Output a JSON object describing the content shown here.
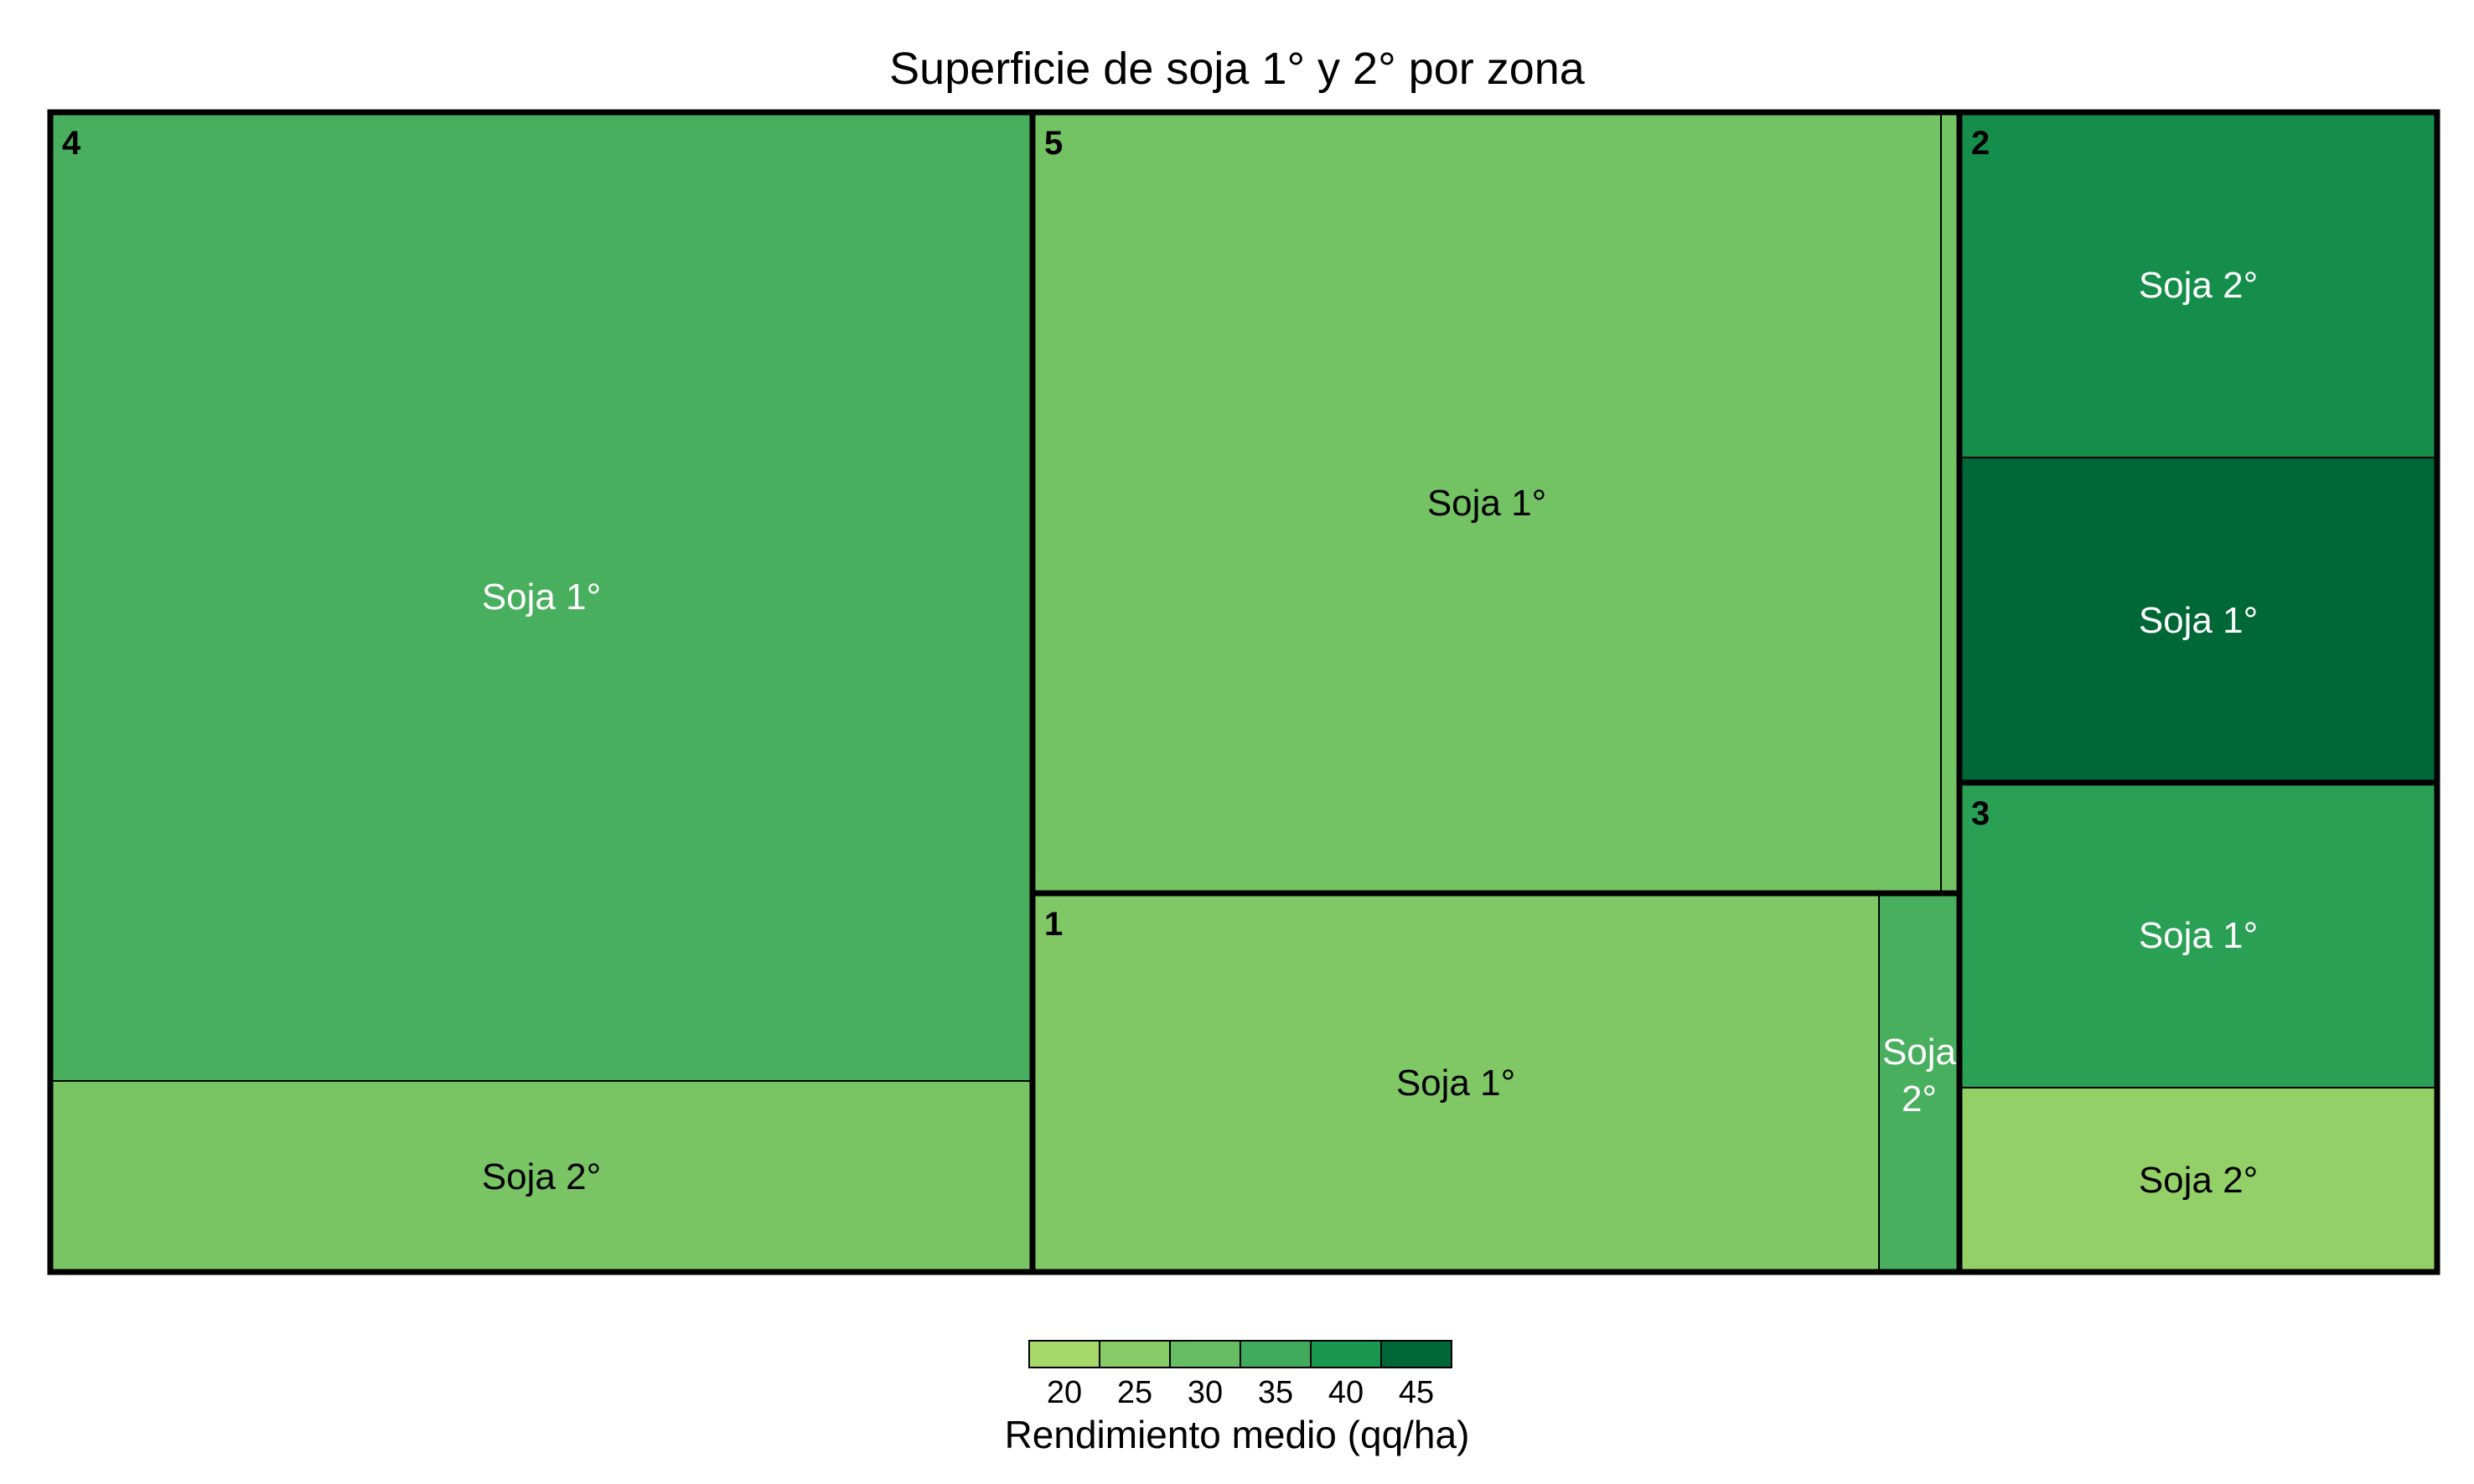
{
  "chart_data": {
    "type": "treemap",
    "title": "Superficie de soja 1° y 2° por zona",
    "zones": [
      {
        "zone": "4",
        "cells": [
          {
            "label": "Soja 1°",
            "yield": 34
          },
          {
            "label": "Soja 2°",
            "yield": 27
          }
        ]
      },
      {
        "zone": "5",
        "cells": [
          {
            "label": "Soja 1°",
            "yield": 28
          },
          {
            "label": "",
            "yield": 28
          }
        ]
      },
      {
        "zone": "1",
        "cells": [
          {
            "label": "Soja 1°",
            "yield": 26
          },
          {
            "label": "Soja 2°",
            "yield": 34
          }
        ]
      },
      {
        "zone": "2",
        "cells": [
          {
            "label": "Soja 2°",
            "yield": 41
          },
          {
            "label": "Soja 1°",
            "yield": 48
          }
        ]
      },
      {
        "zone": "3",
        "cells": [
          {
            "label": "Soja 1°",
            "yield": 38
          },
          {
            "label": "Soja 2°",
            "yield": 23
          }
        ]
      }
    ],
    "legend": {
      "title": "Rendimiento medio (qq/ha)",
      "ticks": [
        "20",
        "25",
        "30",
        "35",
        "40",
        "45"
      ],
      "colors": [
        "#a6d96a",
        "#86cb66",
        "#66bd63",
        "#41ab5d",
        "#1a9850",
        "#006837"
      ]
    }
  }
}
